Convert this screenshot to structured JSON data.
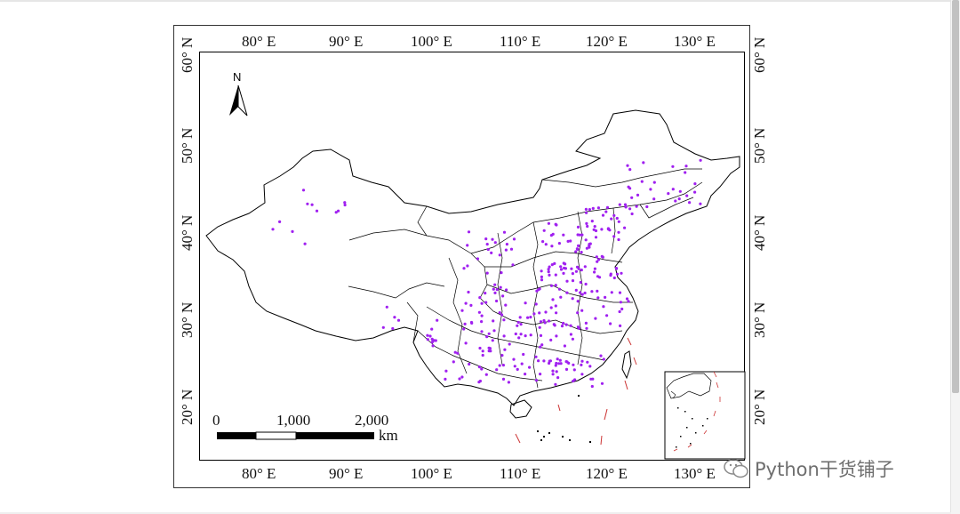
{
  "map": {
    "longitude_labels": [
      "80° E",
      "90° E",
      "100° E",
      "110° E",
      "120° E",
      "130° E"
    ],
    "latitude_labels": [
      "60° N",
      "50° N",
      "40° N",
      "30° N",
      "20° N"
    ],
    "north_arrow_label": "N",
    "scale_bar": {
      "labels": [
        "0",
        "1,000",
        "2,000"
      ],
      "unit": "km"
    },
    "point_color": "#a020f0",
    "boundary_color": "#000000",
    "island_color": "#cc3333"
  },
  "watermark": {
    "text": "Python干货铺子"
  }
}
